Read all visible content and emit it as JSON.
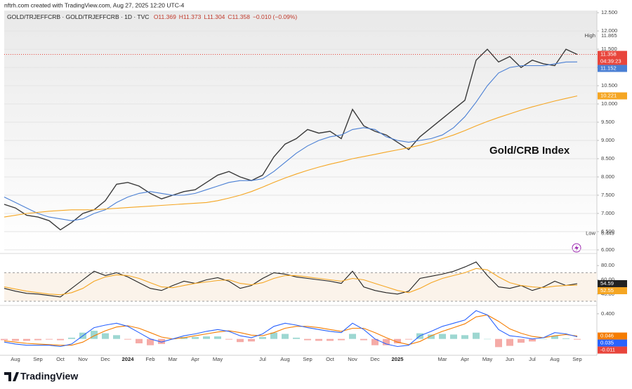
{
  "header": "nftrh.com created with TradingView.com, Aug 27, 2025 12:20 UTC-4",
  "footer": "TradingView",
  "chart_data": [
    {
      "type": "line",
      "symbol": "GOLD/TRJEFFCRB · GOLD/TRJEFFCRB · 1D · TVC",
      "ohlc": [
        "O11.369",
        "H11.373",
        "L11.304",
        "C11.358",
        "−0.010 (−0.09%)"
      ],
      "annotation": "Gold/CRB Index",
      "countdown": "04:39:23",
      "high": {
        "label": "High",
        "value": 11.865
      },
      "low": {
        "label": "Low",
        "value": 6.449
      },
      "ylim": [
        5.96,
        12.56
      ],
      "yticks": [
        {
          "value": 6,
          "label": "6.000"
        },
        {
          "value": 6.5,
          "label": "6.500"
        },
        {
          "value": 7,
          "label": "7.000"
        },
        {
          "value": 7.5,
          "label": "7.500"
        },
        {
          "value": 8,
          "label": "8.000"
        },
        {
          "value": 8.5,
          "label": "8.500"
        },
        {
          "value": 9,
          "label": "9.000"
        },
        {
          "value": 9.5,
          "label": "9.500"
        },
        {
          "value": 10,
          "label": "10.000"
        },
        {
          "value": 10.5,
          "label": "10.500"
        },
        {
          "value": 11,
          "label": "11.000"
        },
        {
          "value": 11.5,
          "label": "11.500"
        },
        {
          "value": 12,
          "label": "12.000"
        },
        {
          "value": 12.5,
          "label": "12.500"
        }
      ],
      "grid": true,
      "series": [
        {
          "color": "#3a3a3a",
          "label_color": "#e8453c",
          "values": [
            7.25,
            7.15,
            6.95,
            6.9,
            6.8,
            6.55,
            6.75,
            7.0,
            7.1,
            7.35,
            7.8,
            7.85,
            7.75,
            7.55,
            7.4,
            7.5,
            7.6,
            7.65,
            7.85,
            8.05,
            8.15,
            8.0,
            7.9,
            8.05,
            8.55,
            8.9,
            9.05,
            9.3,
            9.2,
            9.25,
            9.05,
            9.85,
            9.4,
            9.25,
            9.15,
            8.95,
            8.75,
            9.1,
            9.35,
            9.6,
            9.85,
            10.1,
            11.2,
            11.5,
            11.15,
            11.3,
            11.0,
            11.2,
            11.1,
            11.05,
            11.5,
            11.358
          ]
        },
        {
          "color": "#4a7fd4",
          "values": [
            7.45,
            7.3,
            7.15,
            7.0,
            6.9,
            6.85,
            6.8,
            6.85,
            7.0,
            7.1,
            7.3,
            7.45,
            7.55,
            7.6,
            7.55,
            7.5,
            7.5,
            7.55,
            7.65,
            7.75,
            7.85,
            7.9,
            7.9,
            7.95,
            8.15,
            8.4,
            8.65,
            8.85,
            9.0,
            9.1,
            9.15,
            9.3,
            9.35,
            9.3,
            9.1,
            9.0,
            8.95,
            9.0,
            9.05,
            9.15,
            9.35,
            9.65,
            10.05,
            10.5,
            10.85,
            11.0,
            11.05,
            11.05,
            11.05,
            11.1,
            11.15,
            11.152
          ]
        },
        {
          "color": "#f5a623",
          "values": [
            6.9,
            6.95,
            7.0,
            7.03,
            7.06,
            7.08,
            7.1,
            7.1,
            7.1,
            7.12,
            7.14,
            7.16,
            7.18,
            7.2,
            7.22,
            7.24,
            7.26,
            7.28,
            7.3,
            7.35,
            7.42,
            7.5,
            7.6,
            7.72,
            7.85,
            7.97,
            8.08,
            8.18,
            8.27,
            8.35,
            8.42,
            8.5,
            8.56,
            8.62,
            8.68,
            8.74,
            8.8,
            8.87,
            8.95,
            9.05,
            9.15,
            9.27,
            9.4,
            9.52,
            9.63,
            9.73,
            9.83,
            9.92,
            10.0,
            10.08,
            10.15,
            10.221
          ]
        }
      ]
    },
    {
      "type": "line",
      "ylim": [
        26,
        94
      ],
      "yticks": [
        {
          "value": 40,
          "label": "40.00"
        },
        {
          "value": 60,
          "label": "60.00"
        },
        {
          "value": 80,
          "label": "80.00"
        }
      ],
      "band": [
        30,
        70
      ],
      "series": [
        {
          "color": "#222222",
          "values": [
            48,
            44,
            41,
            40,
            38,
            36,
            48,
            60,
            72,
            66,
            70,
            64,
            56,
            48,
            45,
            52,
            58,
            55,
            60,
            63,
            58,
            48,
            52,
            62,
            70,
            68,
            64,
            62,
            60,
            58,
            55,
            72,
            50,
            45,
            42,
            40,
            44,
            62,
            65,
            68,
            72,
            78,
            85,
            66,
            50,
            48,
            52,
            45,
            50,
            58,
            52,
            54.59
          ]
        },
        {
          "color": "#f5a623",
          "values": [
            50,
            47,
            44,
            42,
            40,
            39,
            42,
            48,
            58,
            64,
            67,
            66,
            62,
            56,
            50,
            49,
            52,
            55,
            57,
            59,
            60,
            55,
            53,
            56,
            62,
            66,
            66,
            64,
            62,
            60,
            58,
            62,
            60,
            55,
            50,
            45,
            42,
            48,
            56,
            62,
            66,
            70,
            76,
            74,
            64,
            56,
            52,
            50,
            49,
            51,
            52,
            52.55
          ]
        }
      ]
    },
    {
      "type": "line",
      "ylim": [
        -0.26,
        0.51
      ],
      "yticks": [
        {
          "value": 0.4,
          "label": "0.400"
        }
      ],
      "categories": [
        null,
        "Aug",
        null,
        "Sep",
        null,
        "Oct",
        null,
        "Nov",
        null,
        "Dec",
        null,
        "2024",
        null,
        "Feb",
        null,
        "Mar",
        null,
        "Apr",
        null,
        "May",
        null,
        null,
        null,
        "Jul",
        null,
        "Aug",
        null,
        "Sep",
        null,
        "Oct",
        null,
        "Nov",
        null,
        "Dec",
        null,
        "2025",
        null,
        null,
        null,
        "Mar",
        null,
        "Apr",
        null,
        "May",
        null,
        "Jun",
        null,
        "Jul",
        null,
        "Aug",
        null,
        "Sep"
      ],
      "series": [
        {
          "type": "bar",
          "color": "#e8453c",
          "up_color": "#26a69a",
          "values": [
            -0.02,
            -0.03,
            -0.03,
            -0.02,
            -0.01,
            -0.02,
            0.02,
            0.1,
            0.13,
            0.09,
            0.06,
            -0.01,
            -0.07,
            -0.1,
            -0.08,
            0.0,
            0.03,
            0.03,
            0.04,
            0.04,
            -0.01,
            -0.05,
            -0.04,
            0.03,
            0.1,
            0.08,
            0.02,
            -0.02,
            -0.03,
            -0.03,
            -0.02,
            0.08,
            -0.02,
            -0.1,
            -0.1,
            -0.07,
            -0.01,
            0.09,
            0.07,
            0.08,
            0.07,
            0.06,
            0.1,
            0.0,
            -0.13,
            -0.11,
            -0.06,
            -0.04,
            0.0,
            0.05,
            0.01,
            -0.011
          ]
        },
        {
          "color": "#f57c00",
          "values": [
            -0.03,
            -0.05,
            -0.07,
            -0.08,
            -0.09,
            -0.1,
            -0.1,
            -0.05,
            0.05,
            0.13,
            0.19,
            0.21,
            0.17,
            0.1,
            0.03,
            0.0,
            0.02,
            0.05,
            0.08,
            0.11,
            0.13,
            0.1,
            0.06,
            0.05,
            0.1,
            0.17,
            0.2,
            0.2,
            0.18,
            0.15,
            0.12,
            0.17,
            0.17,
            0.1,
            0.02,
            -0.05,
            -0.09,
            -0.04,
            0.05,
            0.12,
            0.18,
            0.24,
            0.35,
            0.38,
            0.28,
            0.16,
            0.09,
            0.04,
            0.02,
            0.05,
            0.07,
            0.046
          ]
        },
        {
          "color": "#2962ff",
          "values": [
            -0.05,
            -0.08,
            -0.1,
            -0.1,
            -0.1,
            -0.12,
            -0.08,
            0.05,
            0.18,
            0.22,
            0.25,
            0.2,
            0.1,
            0.0,
            -0.05,
            0.0,
            0.05,
            0.08,
            0.12,
            0.15,
            0.12,
            0.05,
            0.02,
            0.08,
            0.2,
            0.25,
            0.22,
            0.18,
            0.15,
            0.12,
            0.1,
            0.25,
            0.15,
            0.0,
            -0.08,
            -0.12,
            -0.1,
            0.05,
            0.12,
            0.2,
            0.25,
            0.3,
            0.45,
            0.38,
            0.15,
            0.05,
            0.03,
            0.0,
            0.02,
            0.1,
            0.08,
            0.035
          ]
        }
      ]
    }
  ]
}
